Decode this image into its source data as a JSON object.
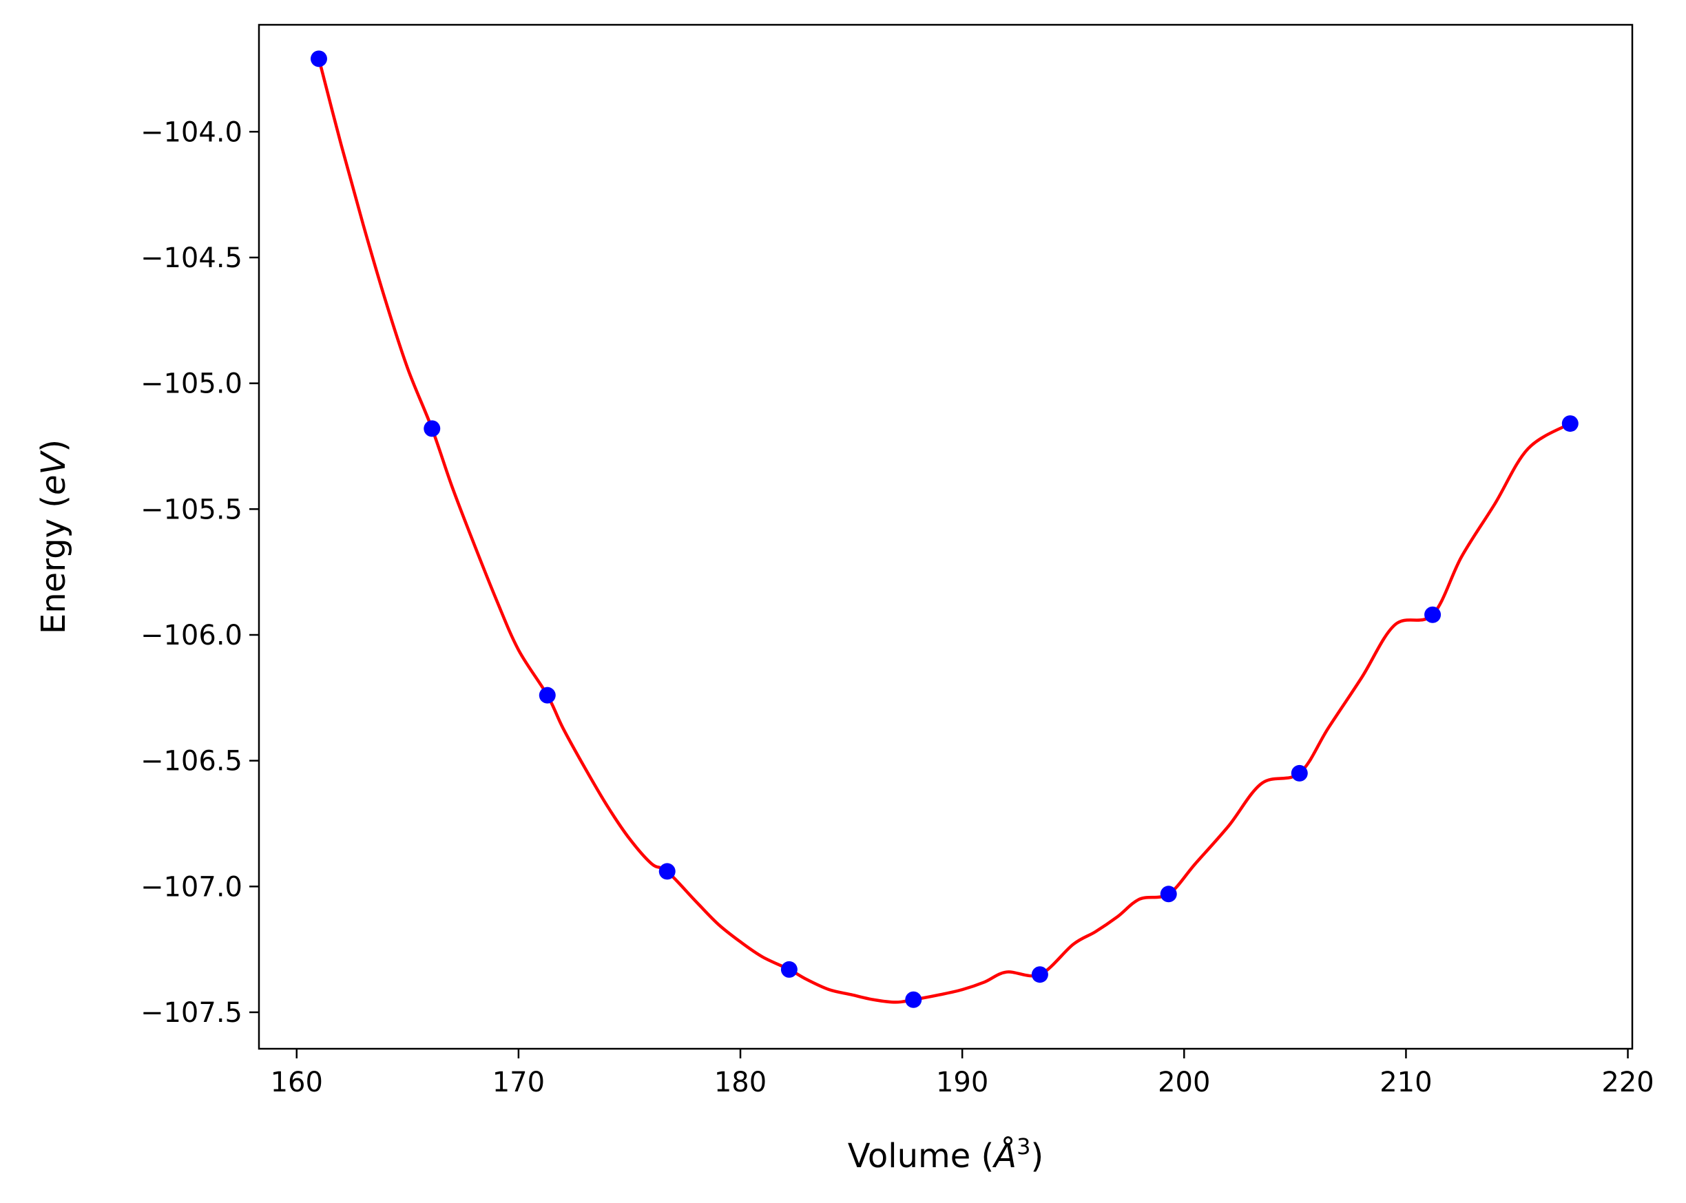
{
  "chart_data": {
    "type": "line",
    "xlabel": "Volume (",
    "xlabel_math": "Å",
    "xlabel_sup": "3",
    "xlabel_end": ")",
    "ylabel": "Energy (",
    "ylabel_math": "eV",
    "ylabel_end": ")",
    "xlim": [
      158.3,
      220.2
    ],
    "ylim": [
      -107.645,
      -103.575
    ],
    "x_ticks": [
      160,
      170,
      180,
      190,
      200,
      210,
      220
    ],
    "x_tick_labels": [
      "160",
      "170",
      "180",
      "190",
      "200",
      "210",
      "220"
    ],
    "y_ticks": [
      -104.0,
      -104.5,
      -105.0,
      -105.5,
      -106.0,
      -106.5,
      -107.0,
      -107.5
    ],
    "y_tick_labels": [
      "−104.0",
      "−104.5",
      "−105.0",
      "−105.5",
      "−106.0",
      "−106.5",
      "−107.0",
      "−107.5"
    ],
    "grid": false,
    "series": [
      {
        "kind": "markers",
        "color": "#0000ff",
        "x": [
          161.0,
          166.1,
          171.3,
          176.7,
          182.2,
          187.8,
          193.5,
          199.3,
          205.2,
          211.2,
          217.4
        ],
        "y": [
          -103.71,
          -105.18,
          -106.24,
          -106.94,
          -107.33,
          -107.45,
          -107.35,
          -107.03,
          -106.55,
          -105.92,
          -105.16
        ]
      },
      {
        "kind": "fit-curve",
        "color": "#ff0000",
        "x": [
          161.0,
          162.0,
          163.0,
          164.0,
          165.0,
          166.1,
          167.0,
          168.0,
          169.0,
          170.0,
          171.3,
          172.0,
          173.0,
          174.0,
          175.0,
          176.0,
          176.7,
          178.0,
          179.0,
          180.0,
          181.0,
          182.2,
          183.0,
          184.0,
          185.0,
          186.0,
          187.0,
          187.8,
          189.0,
          190.0,
          191.0,
          192.0,
          193.5,
          195.0,
          196.0,
          197.0,
          198.0,
          199.3,
          200.5,
          202.0,
          203.5,
          205.2,
          206.5,
          208.0,
          209.5,
          211.2,
          212.5,
          214.0,
          215.5,
          217.4
        ],
        "y": [
          -103.71,
          -104.05,
          -104.37,
          -104.67,
          -104.94,
          -105.18,
          -105.41,
          -105.64,
          -105.86,
          -106.06,
          -106.24,
          -106.37,
          -106.53,
          -106.68,
          -106.81,
          -106.91,
          -106.94,
          -107.06,
          -107.15,
          -107.22,
          -107.28,
          -107.33,
          -107.37,
          -107.41,
          -107.43,
          -107.45,
          -107.46,
          -107.45,
          -107.43,
          -107.41,
          -107.38,
          -107.34,
          -107.35,
          -107.23,
          -107.18,
          -107.12,
          -107.05,
          -107.03,
          -106.91,
          -106.76,
          -106.59,
          -106.55,
          -106.37,
          -106.17,
          -105.96,
          -105.92,
          -105.69,
          -105.48,
          -105.26,
          -105.16
        ]
      }
    ]
  }
}
